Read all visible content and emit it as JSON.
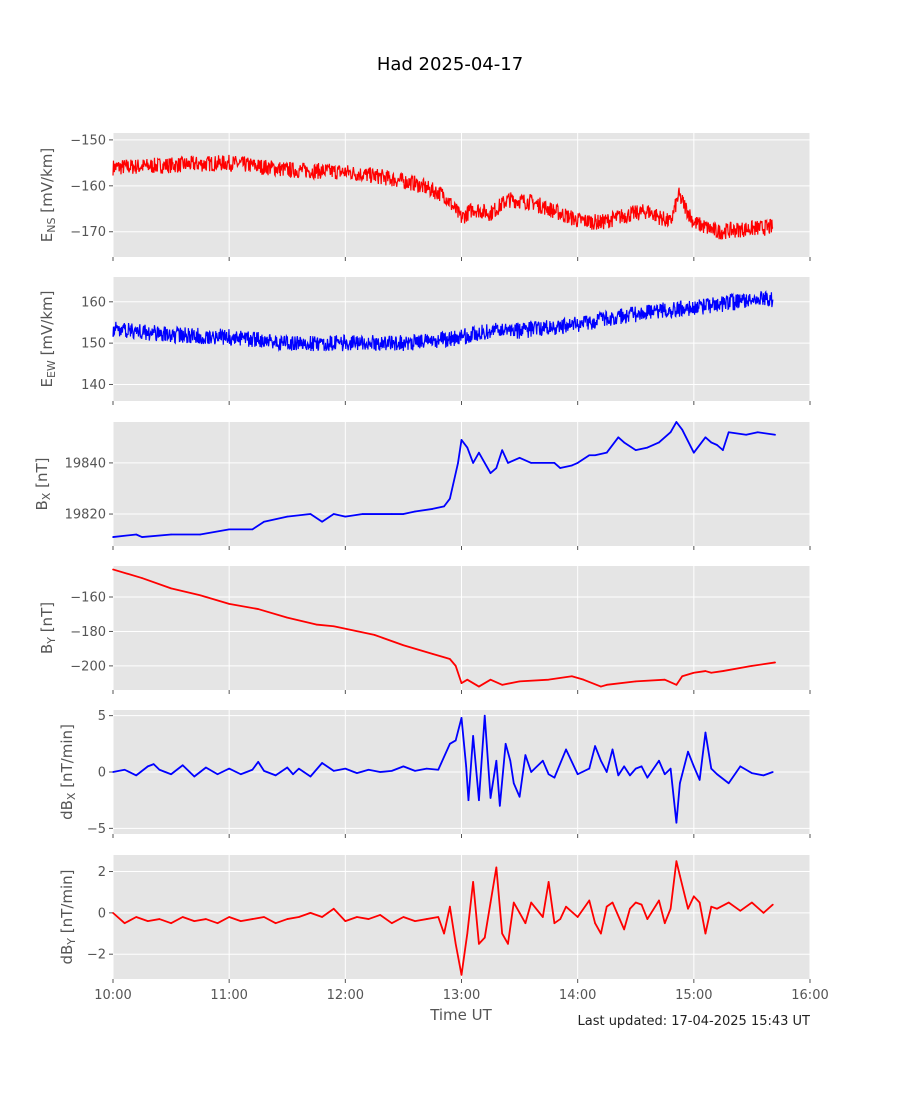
{
  "figure": {
    "title": "Had 2025-04-17",
    "xlabel": "Time UT",
    "footer": "Last updated: 17-04-2025 15:43 UT"
  },
  "chart_data": [
    {
      "type": "line",
      "ylabel": {
        "base": "E",
        "sub": "NS",
        "unit": " [mV/km]"
      },
      "color": "#ff0000",
      "noisy": true,
      "ylim": [
        -175.5,
        -148.5
      ],
      "yticks": [
        -150,
        -160,
        -170
      ],
      "yticklabels": [
        "−150",
        "−160",
        "−170"
      ],
      "series": [
        {
          "x": [
            10.0,
            10.5,
            11.0,
            11.5,
            12.0,
            12.3,
            12.6,
            12.85,
            13.0,
            13.1,
            13.25,
            13.4,
            13.6,
            13.8,
            14.0,
            14.2,
            14.4,
            14.6,
            14.8,
            14.87,
            15.0,
            15.2,
            15.4,
            15.68
          ],
          "y": [
            -156,
            -155.5,
            -155,
            -156.5,
            -157,
            -158,
            -159.5,
            -162,
            -167,
            -165,
            -166,
            -163,
            -163.5,
            -165.5,
            -167.5,
            -168,
            -166.5,
            -165.5,
            -168,
            -162,
            -168,
            -170,
            -169.5,
            -169
          ]
        }
      ]
    },
    {
      "type": "line",
      "ylabel": {
        "base": "E",
        "sub": "EW",
        "unit": " [mV/km]"
      },
      "color": "#0000ff",
      "noisy": true,
      "ylim": [
        136,
        166
      ],
      "yticks": [
        160,
        150,
        140
      ],
      "yticklabels": [
        "160",
        "150",
        "140"
      ],
      "series": [
        {
          "x": [
            10.0,
            10.5,
            11.0,
            11.5,
            12.0,
            12.5,
            12.75,
            13.0,
            13.25,
            13.5,
            14.0,
            14.25,
            14.5,
            14.75,
            15.0,
            15.25,
            15.5,
            15.68
          ],
          "y": [
            153.5,
            152,
            151.5,
            150,
            150,
            150,
            150.5,
            151.5,
            153,
            153,
            154.5,
            156,
            157,
            158,
            158.5,
            159.5,
            160.5,
            160.5
          ]
        }
      ]
    },
    {
      "type": "line",
      "ylabel": {
        "base": "B",
        "sub": "X",
        "unit": " [nT]"
      },
      "color": "#0000ff",
      "noisy": false,
      "ylim": [
        19807.5,
        19856
      ],
      "yticks": [
        19840,
        19820
      ],
      "yticklabels": [
        "19840",
        "19820"
      ],
      "series": [
        {
          "x": [
            10.0,
            10.2,
            10.25,
            10.5,
            10.75,
            11.0,
            11.2,
            11.3,
            11.5,
            11.7,
            11.8,
            11.9,
            12.0,
            12.15,
            12.4,
            12.5,
            12.6,
            12.75,
            12.85,
            12.9,
            12.97,
            13.0,
            13.05,
            13.1,
            13.15,
            13.2,
            13.25,
            13.3,
            13.35,
            13.4,
            13.5,
            13.6,
            13.8,
            13.85,
            13.95,
            14.0,
            14.1,
            14.15,
            14.25,
            14.35,
            14.4,
            14.5,
            14.6,
            14.7,
            14.8,
            14.85,
            14.9,
            15.0,
            15.1,
            15.15,
            15.2,
            15.25,
            15.3,
            15.45,
            15.55,
            15.7
          ],
          "y": [
            19811,
            19812,
            19811,
            19812,
            19812,
            19814,
            19814,
            19817,
            19819,
            19820,
            19817,
            19820,
            19819,
            19820,
            19820,
            19820,
            19821,
            19822,
            19823,
            19826,
            19840,
            19849,
            19846,
            19840,
            19844,
            19840,
            19836,
            19838,
            19845,
            19840,
            19842,
            19840,
            19840,
            19838,
            19839,
            19840,
            19843,
            19843,
            19844,
            19850,
            19848,
            19845,
            19846,
            19848,
            19852,
            19856,
            19853,
            19844,
            19850,
            19848,
            19847,
            19845,
            19852,
            19851,
            19852,
            19851
          ]
        }
      ]
    },
    {
      "type": "line",
      "ylabel": {
        "base": "B",
        "sub": "Y",
        "unit": " [nT]"
      },
      "color": "#ff0000",
      "noisy": false,
      "ylim": [
        -214,
        -142
      ],
      "yticks": [
        -160,
        -180,
        -200
      ],
      "yticklabels": [
        "−160",
        "−180",
        "−200"
      ],
      "series": [
        {
          "x": [
            10.0,
            10.25,
            10.5,
            10.75,
            11.0,
            11.25,
            11.5,
            11.75,
            11.9,
            12.25,
            12.5,
            12.75,
            12.85,
            12.9,
            12.95,
            13.0,
            13.05,
            13.15,
            13.25,
            13.35,
            13.5,
            13.75,
            13.95,
            14.05,
            14.2,
            14.25,
            14.5,
            14.75,
            14.85,
            14.9,
            15.0,
            15.1,
            15.15,
            15.25,
            15.5,
            15.7
          ],
          "y": [
            -144,
            -149,
            -155,
            -159,
            -164,
            -167,
            -172,
            -176,
            -177,
            -182,
            -188,
            -193,
            -195,
            -196,
            -200,
            -210,
            -208,
            -212,
            -208,
            -211,
            -209,
            -208,
            -206,
            -208,
            -212,
            -211,
            -209,
            -208,
            -211,
            -206,
            -204,
            -203,
            -204,
            -203,
            -200,
            -198
          ]
        }
      ]
    },
    {
      "type": "line",
      "ylabel": {
        "base": "dB",
        "sub": "X",
        "unit": " [nT/min]"
      },
      "color": "#0000ff",
      "noisy": false,
      "ylim": [
        -5.5,
        5.5
      ],
      "yticks": [
        5,
        0,
        -5
      ],
      "yticklabels": [
        "5",
        "0",
        "−5"
      ],
      "series": [
        {
          "x": [
            10.0,
            10.1,
            10.2,
            10.3,
            10.35,
            10.4,
            10.5,
            10.6,
            10.7,
            10.8,
            10.9,
            11.0,
            11.1,
            11.2,
            11.25,
            11.3,
            11.4,
            11.5,
            11.55,
            11.6,
            11.7,
            11.8,
            11.9,
            12.0,
            12.1,
            12.2,
            12.3,
            12.4,
            12.5,
            12.6,
            12.7,
            12.8,
            12.9,
            12.95,
            13.0,
            13.04,
            13.06,
            13.1,
            13.15,
            13.2,
            13.25,
            13.3,
            13.33,
            13.38,
            13.42,
            13.45,
            13.5,
            13.55,
            13.6,
            13.7,
            13.75,
            13.8,
            13.9,
            14.0,
            14.1,
            14.15,
            14.2,
            14.25,
            14.3,
            14.35,
            14.4,
            14.45,
            14.5,
            14.55,
            14.6,
            14.7,
            14.75,
            14.8,
            14.85,
            14.88,
            14.95,
            15.0,
            15.05,
            15.1,
            15.15,
            15.2,
            15.3,
            15.4,
            15.5,
            15.6,
            15.68
          ],
          "y": [
            0,
            0.2,
            -0.3,
            0.5,
            0.7,
            0.2,
            -0.2,
            0.6,
            -0.4,
            0.4,
            -0.2,
            0.3,
            -0.2,
            0.2,
            0.9,
            0.1,
            -0.3,
            0.4,
            -0.2,
            0.3,
            -0.4,
            0.8,
            0.1,
            0.3,
            -0.1,
            0.2,
            0,
            0.1,
            0.5,
            0.1,
            0.3,
            0.2,
            2.5,
            2.8,
            4.8,
            0.5,
            -2.5,
            3.2,
            -2.5,
            5.0,
            -2.3,
            1.0,
            -3.0,
            2.5,
            1.0,
            -1.0,
            -2.2,
            1.5,
            0,
            1.0,
            -0.2,
            -0.5,
            2.0,
            -0.2,
            0.3,
            2.3,
            1.0,
            0,
            2.0,
            -0.3,
            0.5,
            -0.3,
            0.3,
            0.5,
            -0.5,
            1.0,
            -0.2,
            0.3,
            -4.5,
            -1.0,
            1.8,
            0.5,
            -0.7,
            3.5,
            0.3,
            -0.2,
            -1.0,
            0.5,
            -0.1,
            -0.3,
            0
          ]
        }
      ]
    },
    {
      "type": "line",
      "ylabel": {
        "base": "dB",
        "sub": "Y",
        "unit": " [nT/min]"
      },
      "color": "#ff0000",
      "noisy": false,
      "ylim": [
        -3.2,
        2.8
      ],
      "yticks": [
        2,
        0,
        -2
      ],
      "yticklabels": [
        "2",
        "0",
        "−2"
      ],
      "series": [
        {
          "x": [
            10.0,
            10.1,
            10.2,
            10.3,
            10.4,
            10.5,
            10.6,
            10.7,
            10.8,
            10.9,
            11.0,
            11.1,
            11.2,
            11.3,
            11.4,
            11.5,
            11.6,
            11.7,
            11.8,
            11.9,
            12.0,
            12.1,
            12.2,
            12.3,
            12.4,
            12.5,
            12.6,
            12.7,
            12.8,
            12.85,
            12.9,
            12.95,
            13.0,
            13.05,
            13.1,
            13.15,
            13.2,
            13.25,
            13.3,
            13.35,
            13.4,
            13.45,
            13.5,
            13.55,
            13.6,
            13.7,
            13.75,
            13.8,
            13.85,
            13.9,
            14.0,
            14.1,
            14.15,
            14.2,
            14.25,
            14.3,
            14.4,
            14.45,
            14.5,
            14.55,
            14.6,
            14.7,
            14.75,
            14.8,
            14.85,
            14.88,
            14.95,
            15.0,
            15.05,
            15.1,
            15.15,
            15.2,
            15.3,
            15.4,
            15.5,
            15.6,
            15.68
          ],
          "y": [
            0,
            -0.5,
            -0.2,
            -0.4,
            -0.3,
            -0.5,
            -0.2,
            -0.4,
            -0.3,
            -0.5,
            -0.2,
            -0.4,
            -0.3,
            -0.2,
            -0.5,
            -0.3,
            -0.2,
            0,
            -0.2,
            0.2,
            -0.4,
            -0.2,
            -0.3,
            -0.1,
            -0.5,
            -0.2,
            -0.4,
            -0.3,
            -0.2,
            -1.0,
            0.3,
            -1.5,
            -3.0,
            -1.0,
            1.5,
            -1.5,
            -1.2,
            0.5,
            2.2,
            -1.0,
            -1.5,
            0.5,
            0,
            -0.5,
            0.5,
            -0.2,
            1.5,
            -0.5,
            -0.3,
            0.3,
            -0.2,
            0.6,
            -0.5,
            -1.0,
            0.3,
            0.5,
            -0.8,
            0.2,
            0.5,
            0.4,
            -0.3,
            0.6,
            -0.5,
            0.2,
            2.5,
            1.8,
            0.2,
            0.8,
            0.5,
            -1.0,
            0.3,
            0.2,
            0.5,
            0.1,
            0.5,
            0,
            0.4
          ]
        }
      ]
    }
  ],
  "x_axis": {
    "xlim": [
      10,
      16
    ],
    "ticks": [
      10,
      11,
      12,
      13,
      14,
      15,
      16
    ],
    "ticklabels": [
      "10:00",
      "11:00",
      "12:00",
      "13:00",
      "14:00",
      "15:00",
      "16:00"
    ]
  },
  "style": {
    "panel_bg": "#e5e5e5",
    "grid": "#ffffff"
  }
}
